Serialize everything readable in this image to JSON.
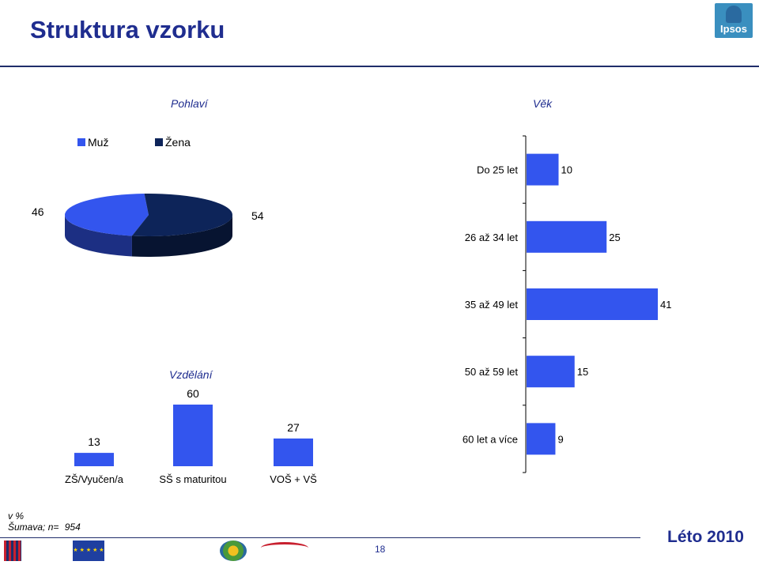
{
  "page": {
    "title": "Struktura vzorku",
    "brand": "Ipsos",
    "note_line1": "v %",
    "note_line2": "Šumava; n=",
    "sample_n": "954",
    "page_number": "18",
    "season": "Léto 2010"
  },
  "colors": {
    "title": "#1f2d8f",
    "bar": "#3355ee",
    "pie_male": "#3355ee",
    "pie_female": "#0d2459"
  },
  "footer_logos": {
    "iop": "INTEGROVANÝ OPERAČNÍ PROGRAM",
    "eu": "EVROPSKÁ UNIE EVROPSKÝ FOND PRO REGIONÁLNÍ ROZVOJ ŠANCE PRO VÁŠ ROZVOJ",
    "czechtourism": "CzechTourism"
  },
  "chart_data": [
    {
      "type": "pie",
      "title": "Pohlaví",
      "labels": [
        "Muž",
        "Žena"
      ],
      "values": [
        46,
        54
      ],
      "legend": "top-left"
    },
    {
      "type": "bar",
      "orientation": "horizontal",
      "title": "Věk",
      "categories": [
        "Do 25 let",
        "26 až 34 let",
        "35 až 49 let",
        "50 až 59 let",
        "60 let a více"
      ],
      "values": [
        10,
        25,
        41,
        15,
        9
      ],
      "xlim": [
        0,
        45
      ]
    },
    {
      "type": "bar",
      "title": "Vzdělání",
      "categories": [
        "ZŠ/Vyučen/a",
        "SŠ s maturitou",
        "VOŠ + VŠ"
      ],
      "values": [
        13,
        60,
        27
      ],
      "ylim": [
        0,
        70
      ]
    }
  ]
}
